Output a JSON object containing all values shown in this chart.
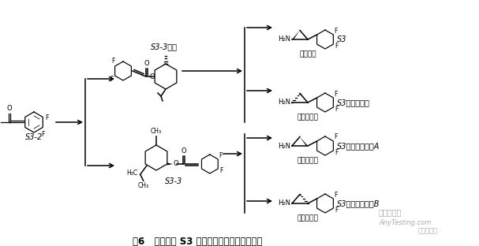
{
  "bg_color": "#ffffff",
  "title": "图6   起始物料 S3 的立体异构体产生的示意图",
  "watermark1": "嘉峪检测网",
  "watermark2": "AnyTesting.com",
  "watermark3": "北京药研汇",
  "label_s3_2": "S3-2",
  "label_s3_3": "S3-3",
  "label_s3_3e": "S3-3顺式",
  "label_s3": "S3",
  "label_target": "目标产物",
  "label_enantiomer": "S3对映异构体",
  "label_likely": "较大可能性",
  "label_diastA": "S3非对映异构体A",
  "label_diastB": "S3非对映异构体B",
  "label_unlikely": "极少可能性"
}
